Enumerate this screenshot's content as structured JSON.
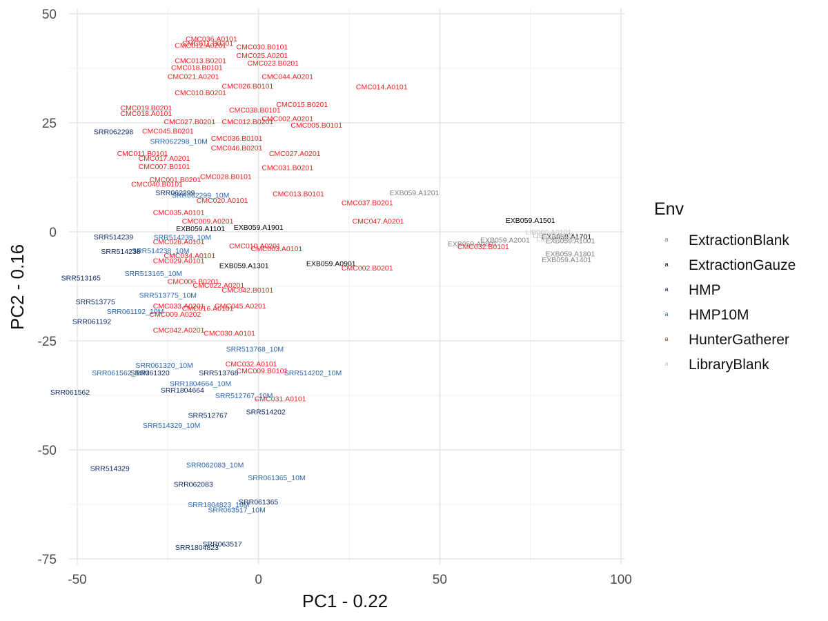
{
  "chart_data": {
    "type": "scatter",
    "xlabel": "PC1 - 0.22",
    "ylabel": "PC2 - 0.16",
    "xlim": [
      -52,
      101
    ],
    "ylim": [
      -77,
      51
    ],
    "x_ticks": [
      -50,
      0,
      50,
      100
    ],
    "y_ticks": [
      -75,
      -50,
      -25,
      0,
      25,
      50
    ],
    "x_tick_labels": [
      "-50",
      "0",
      "50",
      "100"
    ],
    "y_tick_labels": [
      "-75",
      "-50",
      "-25",
      "0",
      "25",
      "50"
    ],
    "grid": true,
    "legend": {
      "title": "Env",
      "placement": "right",
      "key_glyph": "a",
      "entries": [
        {
          "name": "ExtractionBlank",
          "color": "#808080"
        },
        {
          "name": "ExtractionGauze",
          "color": "#000000"
        },
        {
          "name": "HMP",
          "color": "#0d2a66"
        },
        {
          "name": "HMP10M",
          "color": "#2a66b2"
        },
        {
          "name": "HunterGatherer",
          "color": "#ee2222"
        },
        {
          "name": "LibraryBlank",
          "color": "#c4c4c4"
        }
      ]
    },
    "series": [
      {
        "name": "HunterGatherer",
        "color": "#ee2222",
        "points": [
          {
            "label": "CMC036.A0101",
            "x": -13,
            "y": 44.3
          },
          {
            "label": "CMC011.B0201",
            "x": -14,
            "y": 43.3
          },
          {
            "label": "CMC012.A0201",
            "x": -16,
            "y": 42.8
          },
          {
            "label": "CMC030.B0101",
            "x": 1,
            "y": 42.5
          },
          {
            "label": "CMC025.A0201",
            "x": 1,
            "y": 40.5
          },
          {
            "label": "CMC013.B0201",
            "x": -16,
            "y": 39.3
          },
          {
            "label": "CMC023.B0201",
            "x": 4,
            "y": 38.8
          },
          {
            "label": "CMC018.B0101",
            "x": -17,
            "y": 37.7
          },
          {
            "label": "CMC021.A0201",
            "x": -18,
            "y": 35.7
          },
          {
            "label": "CMC044.A0201",
            "x": 8,
            "y": 35.7
          },
          {
            "label": "CMC014.A0101",
            "x": 34,
            "y": 33.3
          },
          {
            "label": "CMC026.B0101",
            "x": -3,
            "y": 33.5
          },
          {
            "label": "CMC010.B0201",
            "x": -16,
            "y": 32
          },
          {
            "label": "CMC015.B0201",
            "x": 12,
            "y": 29.3
          },
          {
            "label": "CMC038.B0101",
            "x": -1,
            "y": 28
          },
          {
            "label": "CMC019.B0201",
            "x": -31,
            "y": 28.5
          },
          {
            "label": "CMC018.A0101",
            "x": -31,
            "y": 27.2
          },
          {
            "label": "CMC002.A0201",
            "x": 8,
            "y": 26
          },
          {
            "label": "CMC027.B0201",
            "x": -19,
            "y": 25.3
          },
          {
            "label": "CMC012.B0201",
            "x": -3,
            "y": 25.3
          },
          {
            "label": "CMC005.B0101",
            "x": 16,
            "y": 24.5
          },
          {
            "label": "CMC045.B0201",
            "x": -25,
            "y": 23.2
          },
          {
            "label": "CMC036.B0101",
            "x": -6,
            "y": 21.5
          },
          {
            "label": "CMC046.B0201",
            "x": -6,
            "y": 19.3
          },
          {
            "label": "CMC011.B0101",
            "x": -32,
            "y": 18
          },
          {
            "label": "CMC027.A0201",
            "x": 10,
            "y": 18
          },
          {
            "label": "CMC017.A0201",
            "x": -26,
            "y": 16.9
          },
          {
            "label": "CMC007.B0101",
            "x": -26,
            "y": 15
          },
          {
            "label": "CMC031.B0201",
            "x": 8,
            "y": 14.8
          },
          {
            "label": "CMC028.B0101",
            "x": -9,
            "y": 12.7
          },
          {
            "label": "CMC001.B0201",
            "x": -23,
            "y": 12
          },
          {
            "label": "CMC040.B0101",
            "x": -28,
            "y": 11
          },
          {
            "label": "CMC013.B0101",
            "x": 11,
            "y": 8.8
          },
          {
            "label": "CMC020.A0101",
            "x": -10,
            "y": 7.3
          },
          {
            "label": "CMC037.B0201",
            "x": 30,
            "y": 6.7
          },
          {
            "label": "CMC035.A0101",
            "x": -22,
            "y": 4.5
          },
          {
            "label": "CMC047.A0201",
            "x": 33,
            "y": 2.5
          },
          {
            "label": "CMC009.A0201",
            "x": -14,
            "y": 2.5
          },
          {
            "label": "CMC028.A0101",
            "x": -22,
            "y": -2.2
          },
          {
            "label": "CMC010.A0201",
            "x": -1,
            "y": -3.2
          },
          {
            "label": "CMC003.A0101",
            "x": 5,
            "y": -3.8
          },
          {
            "label": "CMC032.B0101",
            "x": 62,
            "y": -3.3
          },
          {
            "label": "CMC034.A0101",
            "x": -19,
            "y": -5.4
          },
          {
            "label": "CMC029.A0101",
            "x": -22,
            "y": -6.6
          },
          {
            "label": "CMC002.B0201",
            "x": 30,
            "y": -8.2
          },
          {
            "label": "CMC006.B0201",
            "x": -18,
            "y": -11.3
          },
          {
            "label": "CMC022.A0201",
            "x": -11,
            "y": -12.2
          },
          {
            "label": "CMC042.B0101",
            "x": -3,
            "y": -13.3
          },
          {
            "label": "CMC033.A0201",
            "x": -22,
            "y": -16.9
          },
          {
            "label": "CMC045.A0201",
            "x": -5,
            "y": -16.9
          },
          {
            "label": "CMC016.A0101",
            "x": -14,
            "y": -17.5
          },
          {
            "label": "CMC009.A0202",
            "x": -23,
            "y": -18.8
          },
          {
            "label": "CMC042.A0201",
            "x": -22,
            "y": -22.5
          },
          {
            "label": "CMC030.A0101",
            "x": -8,
            "y": -23.2
          },
          {
            "label": "CMC032.A0101",
            "x": -2,
            "y": -30.2
          },
          {
            "label": "CMC009.B0101",
            "x": 1,
            "y": -31.8
          },
          {
            "label": "CMC031.A0101",
            "x": 6,
            "y": -38.2
          }
        ]
      },
      {
        "name": "HMP10M",
        "color": "#2a66b2",
        "points": [
          {
            "label": "SRR062298_10M",
            "x": -22,
            "y": 20.8
          },
          {
            "label": "SRR062299_10M",
            "x": -16,
            "y": 8.5
          },
          {
            "label": "SRR514239_10M",
            "x": -21,
            "y": -1.2
          },
          {
            "label": "SRR514238_10M",
            "x": -27,
            "y": -4.3
          },
          {
            "label": "SRR513165_10M",
            "x": -29,
            "y": -9.5
          },
          {
            "label": "SRR513775_10M",
            "x": -25,
            "y": -14.5
          },
          {
            "label": "SRR061192_10M",
            "x": -34,
            "y": -18.2
          },
          {
            "label": "SRR513768_10M",
            "x": -1,
            "y": -26.8
          },
          {
            "label": "SRR061320_10M",
            "x": -26,
            "y": -30.5
          },
          {
            "label": "SRR061562_10M",
            "x": -38,
            "y": -32.3
          },
          {
            "label": "SRR514202_10M",
            "x": 15,
            "y": -32.3
          },
          {
            "label": "SRR1804664_10M",
            "x": -16,
            "y": -34.7
          },
          {
            "label": "SRR512767_10M",
            "x": -4,
            "y": -37.5
          },
          {
            "label": "SRR514329_10M",
            "x": -24,
            "y": -44.3
          },
          {
            "label": "SRR062083_10M",
            "x": -12,
            "y": -53.4
          },
          {
            "label": "SRR061365_10M",
            "x": 5,
            "y": -56.3
          },
          {
            "label": "SRR1804823_10M",
            "x": -11,
            "y": -62.5
          },
          {
            "label": "SRR063517_10M",
            "x": -6,
            "y": -63.7
          }
        ]
      },
      {
        "name": "HMP",
        "color": "#0d2a66",
        "points": [
          {
            "label": "SRR062298",
            "x": -40,
            "y": 23
          },
          {
            "label": "SRR062299",
            "x": -23,
            "y": 9
          },
          {
            "label": "SRR514239",
            "x": -40,
            "y": -1.1
          },
          {
            "label": "SRR514238",
            "x": -38,
            "y": -4.4
          },
          {
            "label": "SRR513165",
            "x": -49,
            "y": -10.5
          },
          {
            "label": "SRR513775",
            "x": -45,
            "y": -16
          },
          {
            "label": "SRR061192",
            "x": -46,
            "y": -20.5
          },
          {
            "label": "SRR061320",
            "x": -30,
            "y": -32.3
          },
          {
            "label": "SRR513768",
            "x": -11,
            "y": -32.3
          },
          {
            "label": "SRR1804664",
            "x": -21,
            "y": -36.2
          },
          {
            "label": "SRR061562",
            "x": -52,
            "y": -36.7
          },
          {
            "label": "SRR514202",
            "x": 2,
            "y": -41.2
          },
          {
            "label": "SRR512767",
            "x": -14,
            "y": -42
          },
          {
            "label": "SRR514329",
            "x": -41,
            "y": -54.2
          },
          {
            "label": "SRR062083",
            "x": -18,
            "y": -57.8
          },
          {
            "label": "SRR061365",
            "x": 0,
            "y": -61.9
          },
          {
            "label": "SRR063517",
            "x": -10,
            "y": -71.5
          },
          {
            "label": "SRR1804823",
            "x": -17,
            "y": -72.3
          }
        ]
      },
      {
        "name": "ExtractionGauze",
        "color": "#000000",
        "points": [
          {
            "label": "EXB059.A1101",
            "x": -16,
            "y": 0.8
          },
          {
            "label": "EXB059.A1901",
            "x": 0,
            "y": 1.1
          },
          {
            "label": "EXB059.A1501",
            "x": 75,
            "y": 2.7
          },
          {
            "label": "EXB059.A1701",
            "x": 85,
            "y": -1
          },
          {
            "label": "EXB059.A1301",
            "x": -4,
            "y": -7.7
          },
          {
            "label": "EXB059.A0901",
            "x": 20,
            "y": -7.2
          }
        ]
      },
      {
        "name": "ExtractionBlank",
        "color": "#808080",
        "points": [
          {
            "label": "EXB059.A1201",
            "x": 43,
            "y": 9
          },
          {
            "label": "EXB059.A2001",
            "x": 68,
            "y": -1.8
          },
          {
            "label": "EXB059.A1001",
            "x": 86,
            "y": -2
          },
          {
            "label": "EXB059.A1801",
            "x": 86,
            "y": -5
          },
          {
            "label": "EXB059.A1401",
            "x": 85,
            "y": -6.3
          },
          {
            "label": "EXB059.A0801",
            "x": 59,
            "y": -2.7
          }
        ]
      },
      {
        "name": "LibraryBlank",
        "color": "#c4c4c4",
        "points": [
          {
            "label": "LIB060.A0101",
            "x": 80,
            "y": 0
          },
          {
            "label": "LIB060.A0201",
            "x": 82,
            "y": -0.8
          },
          {
            "label": "LIB060.A0301",
            "x": 83,
            "y": -1.5
          }
        ]
      }
    ]
  }
}
